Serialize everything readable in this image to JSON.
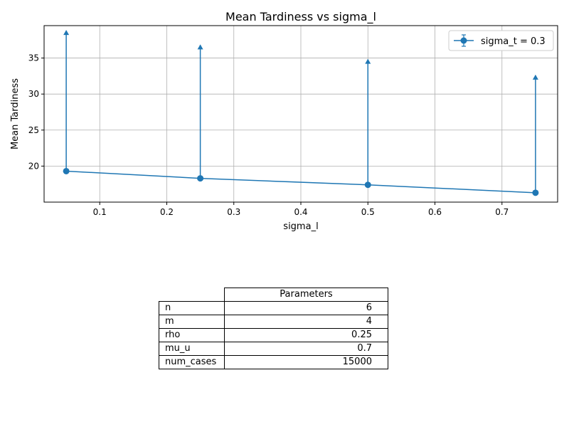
{
  "chart_data": {
    "type": "line",
    "title": "Mean Tardiness vs sigma_l",
    "xlabel": "sigma_l",
    "ylabel": "Mean Tardiness",
    "xlim": [
      0.017,
      0.783
    ],
    "ylim": [
      15.0,
      39.5
    ],
    "x_ticks": [
      "0.1",
      "0.2",
      "0.3",
      "0.4",
      "0.5",
      "0.6",
      "0.7"
    ],
    "y_ticks": [
      "20",
      "25",
      "30",
      "35"
    ],
    "grid": true,
    "legend_position": "top-right",
    "color": "#1f77b4",
    "series": [
      {
        "name": "sigma_t = 0.3",
        "x": [
          0.05,
          0.25,
          0.5,
          0.75
        ],
        "y": [
          19.3,
          18.3,
          17.4,
          16.3
        ],
        "error_upper": [
          38.8,
          36.8,
          34.8,
          32.6
        ]
      }
    ]
  },
  "table": {
    "header": "Parameters",
    "rows": [
      {
        "label": "n",
        "value": "6"
      },
      {
        "label": "m",
        "value": "4"
      },
      {
        "label": "rho",
        "value": "0.25"
      },
      {
        "label": "mu_u",
        "value": "0.7"
      },
      {
        "label": "num_cases",
        "value": "15000"
      }
    ]
  }
}
